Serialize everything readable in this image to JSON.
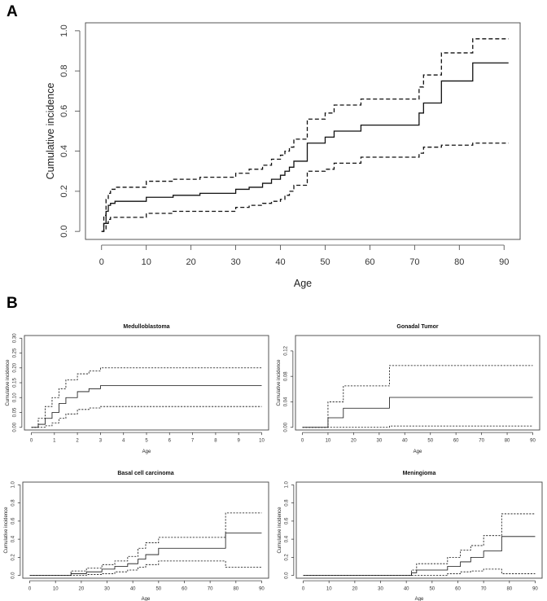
{
  "panel_labels": [
    "A",
    "B"
  ],
  "chart_data": [
    {
      "type": "line",
      "panel": "A",
      "title": "",
      "xlabel": "Age",
      "ylabel": "Cumulative incidence",
      "xlim": [
        0,
        90
      ],
      "ylim": [
        0,
        1
      ],
      "xticks": [
        0,
        10,
        20,
        30,
        40,
        50,
        60,
        70,
        80,
        90
      ],
      "yticks": [
        0.0,
        0.2,
        0.4,
        0.6,
        0.8,
        1.0
      ],
      "ytick_labels": [
        "0.0",
        "0.2",
        "0.4",
        "0.6",
        "0.8",
        "1.0"
      ],
      "series": [
        {
          "name": "estimate",
          "style": "solid",
          "x": [
            0,
            0.5,
            1,
            1.5,
            2,
            3,
            10,
            16,
            22,
            30,
            33,
            36,
            38,
            40,
            41,
            42,
            43,
            46,
            50,
            52,
            58,
            71,
            72,
            76,
            83,
            91
          ],
          "y": [
            0,
            0.04,
            0.1,
            0.13,
            0.14,
            0.15,
            0.17,
            0.18,
            0.19,
            0.21,
            0.22,
            0.24,
            0.26,
            0.28,
            0.3,
            0.32,
            0.35,
            0.44,
            0.47,
            0.5,
            0.53,
            0.59,
            0.64,
            0.75,
            0.84,
            0.84
          ]
        },
        {
          "name": "upper",
          "style": "dashed",
          "x": [
            0,
            0.5,
            1,
            1.5,
            2,
            3,
            10,
            16,
            22,
            30,
            33,
            36,
            38,
            40,
            41,
            42,
            43,
            46,
            50,
            52,
            58,
            71,
            72,
            76,
            83,
            91
          ],
          "y": [
            0,
            0.08,
            0.16,
            0.19,
            0.21,
            0.22,
            0.25,
            0.26,
            0.27,
            0.29,
            0.31,
            0.33,
            0.36,
            0.38,
            0.4,
            0.42,
            0.46,
            0.56,
            0.59,
            0.63,
            0.66,
            0.72,
            0.78,
            0.89,
            0.96,
            0.96
          ]
        },
        {
          "name": "lower",
          "style": "dashed",
          "x": [
            0,
            0.5,
            1,
            1.5,
            2,
            3,
            10,
            16,
            22,
            30,
            33,
            36,
            38,
            40,
            41,
            42,
            43,
            46,
            50,
            52,
            58,
            71,
            72,
            76,
            83,
            91
          ],
          "y": [
            0,
            0.01,
            0.04,
            0.06,
            0.07,
            0.07,
            0.09,
            0.1,
            0.1,
            0.12,
            0.13,
            0.14,
            0.15,
            0.16,
            0.18,
            0.2,
            0.23,
            0.3,
            0.31,
            0.34,
            0.37,
            0.39,
            0.42,
            0.43,
            0.44,
            0.44
          ]
        }
      ]
    },
    {
      "type": "line",
      "panel": "B1",
      "title": "Medulloblastoma",
      "xlabel": "Age",
      "ylabel": "Cumulative incidence",
      "xlim": [
        0,
        10
      ],
      "ylim": [
        0,
        0.3
      ],
      "xticks": [
        0,
        1,
        2,
        3,
        4,
        5,
        6,
        7,
        8,
        9,
        10
      ],
      "yticks": [
        0.0,
        0.05,
        0.1,
        0.15,
        0.2,
        0.25,
        0.3
      ],
      "ytick_labels": [
        "0.00",
        "0.05",
        "0.10",
        "0.15",
        "0.20",
        "0.25",
        "0.30"
      ],
      "series": [
        {
          "name": "estimate",
          "style": "solid",
          "x": [
            0,
            0.3,
            0.6,
            0.9,
            1.2,
            1.5,
            2,
            2.5,
            3,
            10
          ],
          "y": [
            0,
            0.01,
            0.03,
            0.05,
            0.08,
            0.1,
            0.12,
            0.13,
            0.14,
            0.14
          ]
        },
        {
          "name": "upper",
          "style": "dashed",
          "x": [
            0,
            0.3,
            0.6,
            0.9,
            1.2,
            1.5,
            2,
            2.5,
            3,
            10
          ],
          "y": [
            0,
            0.03,
            0.07,
            0.1,
            0.13,
            0.16,
            0.18,
            0.19,
            0.2,
            0.2
          ]
        },
        {
          "name": "lower",
          "style": "dashed",
          "x": [
            0,
            0.3,
            0.6,
            0.9,
            1.2,
            1.5,
            2,
            2.5,
            3,
            10
          ],
          "y": [
            0,
            0.0,
            0.005,
            0.015,
            0.03,
            0.045,
            0.06,
            0.065,
            0.07,
            0.07
          ]
        }
      ]
    },
    {
      "type": "line",
      "panel": "B2",
      "title": "Gonadal Tumor",
      "xlabel": "Age",
      "ylabel": "Cumulative incidence",
      "xlim": [
        0,
        90
      ],
      "ylim": [
        0,
        0.14
      ],
      "xticks": [
        0,
        10,
        20,
        30,
        40,
        50,
        60,
        70,
        80,
        90
      ],
      "yticks": [
        0.0,
        0.04,
        0.08,
        0.12
      ],
      "ytick_labels": [
        "0.00",
        "0.04",
        "0.08",
        "0.12"
      ],
      "series": [
        {
          "name": "estimate",
          "style": "solid",
          "x": [
            0,
            10,
            16,
            34,
            90
          ],
          "y": [
            0,
            0.015,
            0.03,
            0.047,
            0.047
          ]
        },
        {
          "name": "upper",
          "style": "dashed",
          "x": [
            0,
            10,
            16,
            34,
            90
          ],
          "y": [
            0,
            0.04,
            0.065,
            0.097,
            0.097
          ]
        },
        {
          "name": "lower",
          "style": "dashed",
          "x": [
            0,
            10,
            16,
            34,
            90
          ],
          "y": [
            0,
            0.0,
            0.0,
            0.002,
            0.002
          ]
        }
      ]
    },
    {
      "type": "line",
      "panel": "B3",
      "title": "Basal cell carcinoma",
      "xlabel": "Age",
      "ylabel": "Cumulative incidence",
      "xlim": [
        0,
        90
      ],
      "ylim": [
        0,
        1
      ],
      "xticks": [
        0,
        10,
        20,
        30,
        40,
        50,
        60,
        70,
        80,
        90
      ],
      "yticks": [
        0.0,
        0.2,
        0.4,
        0.6,
        0.8,
        1.0
      ],
      "ytick_labels": [
        "0.0",
        "0.2",
        "0.4",
        "0.6",
        "0.8",
        "1.0"
      ],
      "series": [
        {
          "name": "estimate",
          "style": "solid",
          "x": [
            0,
            16,
            22,
            28,
            33,
            38,
            42,
            45,
            50,
            76,
            90
          ],
          "y": [
            0,
            0.02,
            0.04,
            0.07,
            0.1,
            0.13,
            0.18,
            0.23,
            0.3,
            0.47,
            0.47
          ]
        },
        {
          "name": "upper",
          "style": "dashed",
          "x": [
            0,
            16,
            22,
            28,
            33,
            38,
            42,
            45,
            50,
            76,
            90
          ],
          "y": [
            0,
            0.05,
            0.08,
            0.12,
            0.16,
            0.21,
            0.3,
            0.36,
            0.42,
            0.69,
            0.69
          ]
        },
        {
          "name": "lower",
          "style": "dashed",
          "x": [
            0,
            16,
            22,
            28,
            33,
            38,
            42,
            45,
            50,
            76,
            90
          ],
          "y": [
            0,
            0.0,
            0.01,
            0.02,
            0.04,
            0.06,
            0.09,
            0.12,
            0.16,
            0.09,
            0.09
          ]
        }
      ]
    },
    {
      "type": "line",
      "panel": "B4",
      "title": "Meningioma",
      "xlabel": "Age",
      "ylabel": "Cumulative incidence",
      "xlim": [
        0,
        90
      ],
      "ylim": [
        0,
        1
      ],
      "xticks": [
        0,
        10,
        20,
        30,
        40,
        50,
        60,
        70,
        80,
        90
      ],
      "yticks": [
        0.0,
        0.2,
        0.4,
        0.6,
        0.8,
        1.0
      ],
      "ytick_labels": [
        "0.0",
        "0.2",
        "0.4",
        "0.6",
        "0.8",
        "1.0"
      ],
      "series": [
        {
          "name": "estimate",
          "style": "solid",
          "x": [
            0,
            42,
            44,
            56,
            61,
            65,
            70,
            77,
            90
          ],
          "y": [
            0,
            0.03,
            0.06,
            0.1,
            0.15,
            0.2,
            0.27,
            0.43,
            0.43
          ]
        },
        {
          "name": "upper",
          "style": "dashed",
          "x": [
            0,
            42,
            44,
            56,
            61,
            65,
            70,
            77,
            90
          ],
          "y": [
            0,
            0.06,
            0.13,
            0.2,
            0.28,
            0.33,
            0.44,
            0.68,
            0.68
          ]
        },
        {
          "name": "lower",
          "style": "dashed",
          "x": [
            0,
            42,
            44,
            56,
            61,
            65,
            70,
            77,
            90
          ],
          "y": [
            0,
            0.0,
            0.0,
            0.02,
            0.04,
            0.05,
            0.07,
            0.02,
            0.02
          ]
        }
      ]
    }
  ]
}
